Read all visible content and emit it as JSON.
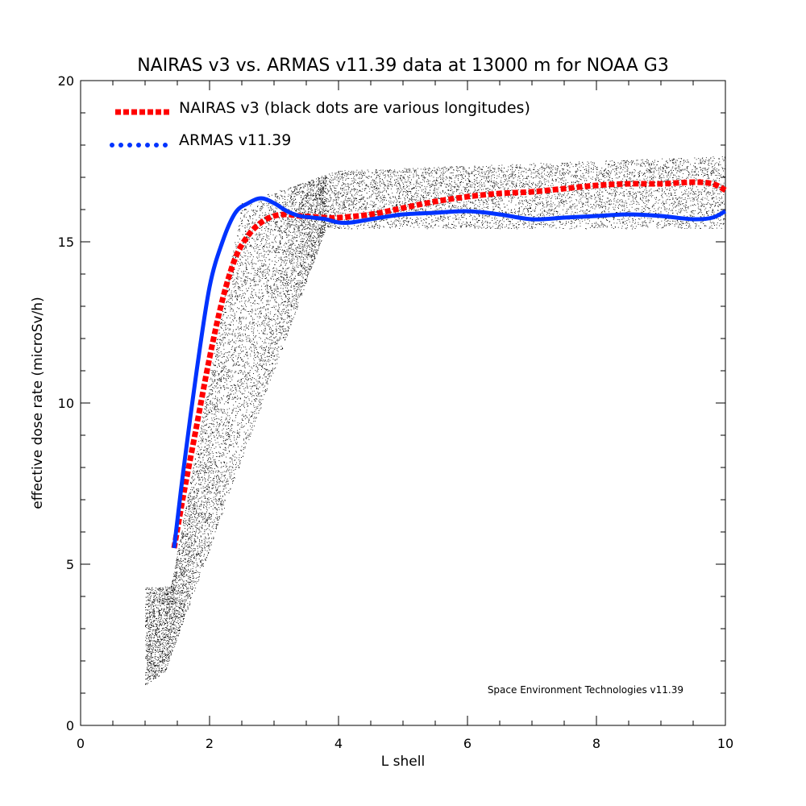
{
  "chart_data": {
    "type": "line",
    "title": "NAIRAS  v3 vs. ARMAS v11.39 data at 13000 m for NOAA G3",
    "xlabel": "L shell",
    "ylabel": "effective dose rate (microSv/h)",
    "xlim": [
      0,
      10
    ],
    "ylim": [
      0,
      20
    ],
    "xticks": [
      0,
      2,
      4,
      6,
      8,
      10
    ],
    "yticks": [
      0,
      5,
      10,
      15,
      20
    ],
    "x_tick_labels": [
      "0",
      "2",
      "4",
      "6",
      "8",
      "10"
    ],
    "y_tick_labels": [
      "0",
      "5",
      "10",
      "15",
      "20"
    ],
    "grid": false,
    "legend_position": "top-left",
    "annotation": "Space Environment Technologies v11.39",
    "series": [
      {
        "name": "NAIRAS v3 (black dots are various longitudes)",
        "color": "#ff0000",
        "style": "dotted",
        "x": [
          1.45,
          1.6,
          1.8,
          2.0,
          2.2,
          2.4,
          2.6,
          2.8,
          3.0,
          3.2,
          3.4,
          3.6,
          3.8,
          4.0,
          4.5,
          5.0,
          5.5,
          6.0,
          6.5,
          7.0,
          7.5,
          8.0,
          8.5,
          9.0,
          9.5,
          9.8,
          10.0
        ],
        "y": [
          5.5,
          7.2,
          9.3,
          11.4,
          13.2,
          14.5,
          15.2,
          15.6,
          15.8,
          15.85,
          15.8,
          15.78,
          15.75,
          15.75,
          15.85,
          16.05,
          16.25,
          16.4,
          16.5,
          16.55,
          16.65,
          16.75,
          16.8,
          16.8,
          16.85,
          16.8,
          16.6
        ]
      },
      {
        "name": "ARMAS v11.39",
        "color": "#0033ff",
        "style": "solid",
        "x": [
          1.45,
          1.6,
          1.8,
          2.0,
          2.2,
          2.4,
          2.6,
          2.8,
          3.0,
          3.2,
          3.4,
          3.6,
          3.8,
          4.0,
          4.2,
          4.5,
          5.0,
          5.5,
          6.0,
          6.5,
          7.0,
          7.5,
          8.0,
          8.5,
          9.0,
          9.5,
          9.8,
          10.0
        ],
        "y": [
          5.5,
          8.0,
          11.0,
          13.6,
          15.0,
          15.9,
          16.2,
          16.35,
          16.2,
          15.95,
          15.8,
          15.75,
          15.7,
          15.6,
          15.6,
          15.7,
          15.85,
          15.9,
          15.95,
          15.85,
          15.7,
          15.75,
          15.8,
          15.85,
          15.8,
          15.7,
          15.75,
          15.95
        ]
      }
    ],
    "scatter_background": {
      "name": "black dots are various longitudes",
      "color": "#000000",
      "description_x_range": [
        1.0,
        10.0
      ]
    }
  }
}
